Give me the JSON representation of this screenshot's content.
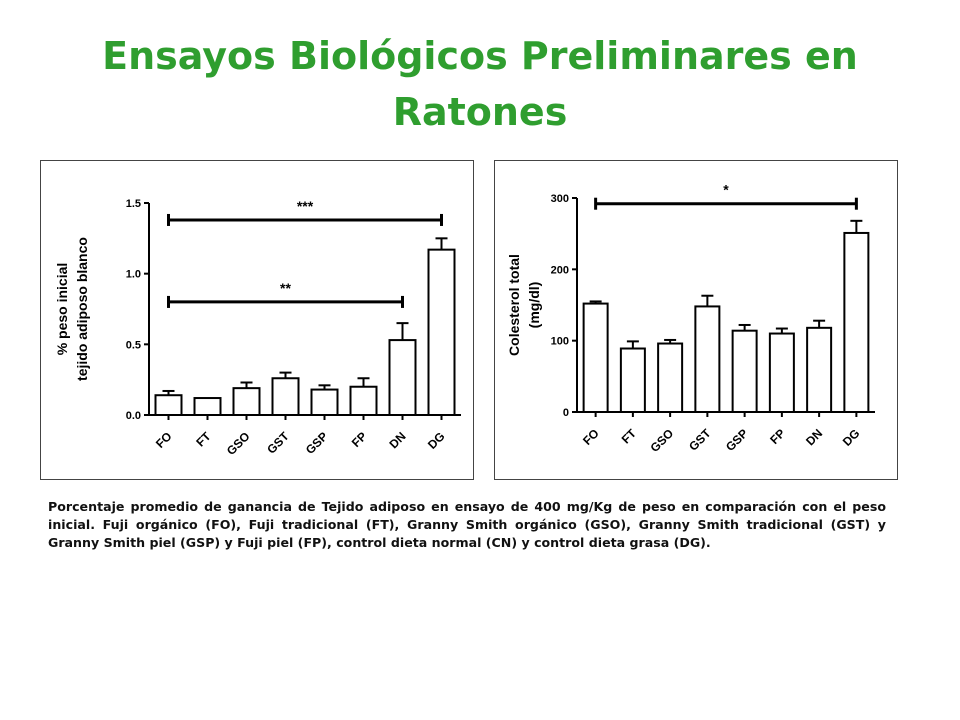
{
  "title": "Ensayos Biológicos Preliminares en Ratones",
  "caption": "Porcentaje promedio  de ganancia de Tejido adiposo en ensayo de 400 mg/Kg de peso en comparación con el peso inicial. Fuji orgánico (FO), Fuji tradicional (FT), Granny Smith orgánico (GSO), Granny Smith tradicional (GST) y  Granny Smith piel (GSP) y Fuji piel (FP), control dieta normal (CN) y control dieta grasa (DG).",
  "colors": {
    "title": "#2f9e2f",
    "bars": "#ffffff",
    "ink": "#000000"
  },
  "chart_data": [
    {
      "type": "bar",
      "categories": [
        "FO",
        "FT",
        "GSO",
        "GST",
        "GSP",
        "FP",
        "DN",
        "DG"
      ],
      "values": [
        0.14,
        0.12,
        0.19,
        0.26,
        0.18,
        0.2,
        0.53,
        1.17
      ],
      "errors": [
        0.03,
        0.0,
        0.04,
        0.04,
        0.03,
        0.06,
        0.12,
        0.08
      ],
      "ylabel_line1": "% peso inicial",
      "ylabel_line2": "tejido adiposo blanco",
      "ylim": [
        0,
        1.5
      ],
      "yticks": [
        "0.0",
        "0.5",
        "1.0",
        "1.5"
      ],
      "grid": false,
      "annotations": [
        {
          "label": "***",
          "from": "FO",
          "to": "DG",
          "level": 1.38
        },
        {
          "label": "**",
          "from": "FO",
          "to": "DN",
          "level": 0.8
        }
      ]
    },
    {
      "type": "bar",
      "categories": [
        "FO",
        "FT",
        "GSO",
        "GST",
        "GSP",
        "FP",
        "DN",
        "DG"
      ],
      "values": [
        152,
        89,
        96,
        148,
        114,
        110,
        118,
        251
      ],
      "errors": [
        3,
        10,
        5,
        15,
        8,
        7,
        10,
        17
      ],
      "ylabel_line1": "Colesterol total",
      "ylabel_line2": "(mg/dl)",
      "ylim": [
        0,
        300
      ],
      "yticks": [
        "0",
        "100",
        "200",
        "300"
      ],
      "grid": false,
      "annotations": [
        {
          "label": "*",
          "from": "FO",
          "to": "DG",
          "level": 292
        }
      ]
    }
  ]
}
